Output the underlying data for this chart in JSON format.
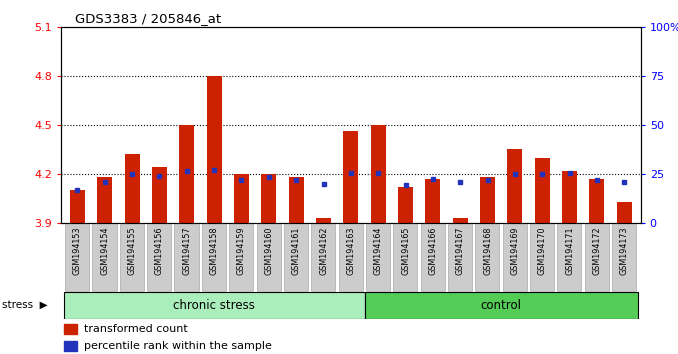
{
  "title": "GDS3383 / 205846_at",
  "samples": [
    "GSM194153",
    "GSM194154",
    "GSM194155",
    "GSM194156",
    "GSM194157",
    "GSM194158",
    "GSM194159",
    "GSM194160",
    "GSM194161",
    "GSM194162",
    "GSM194163",
    "GSM194164",
    "GSM194165",
    "GSM194166",
    "GSM194167",
    "GSM194168",
    "GSM194169",
    "GSM194170",
    "GSM194171",
    "GSM194172",
    "GSM194173"
  ],
  "red_values": [
    4.1,
    4.18,
    4.32,
    4.24,
    4.5,
    4.8,
    4.2,
    4.2,
    4.18,
    3.93,
    4.46,
    4.5,
    4.12,
    4.17,
    3.93,
    4.18,
    4.35,
    4.3,
    4.22,
    4.17,
    4.03
  ],
  "blue_values": [
    4.1,
    4.15,
    4.2,
    4.185,
    4.22,
    4.225,
    4.165,
    4.18,
    4.165,
    4.14,
    4.205,
    4.205,
    4.13,
    4.17,
    4.15,
    4.16,
    4.2,
    4.2,
    4.205,
    4.16,
    4.15
  ],
  "chronic_stress_count": 11,
  "y_min": 3.9,
  "y_max": 5.1,
  "y_ticks_left": [
    3.9,
    4.2,
    4.5,
    4.8,
    5.1
  ],
  "y_ticks_right": [
    0,
    25,
    50,
    75,
    100
  ],
  "bar_color": "#cc2200",
  "blue_color": "#2233bb",
  "chronic_color": "#aaeebb",
  "control_color": "#55cc55",
  "stress_label": "stress",
  "chronic_label": "chronic stress",
  "control_label": "control",
  "legend_red": "transformed count",
  "legend_blue": "percentile rank within the sample"
}
